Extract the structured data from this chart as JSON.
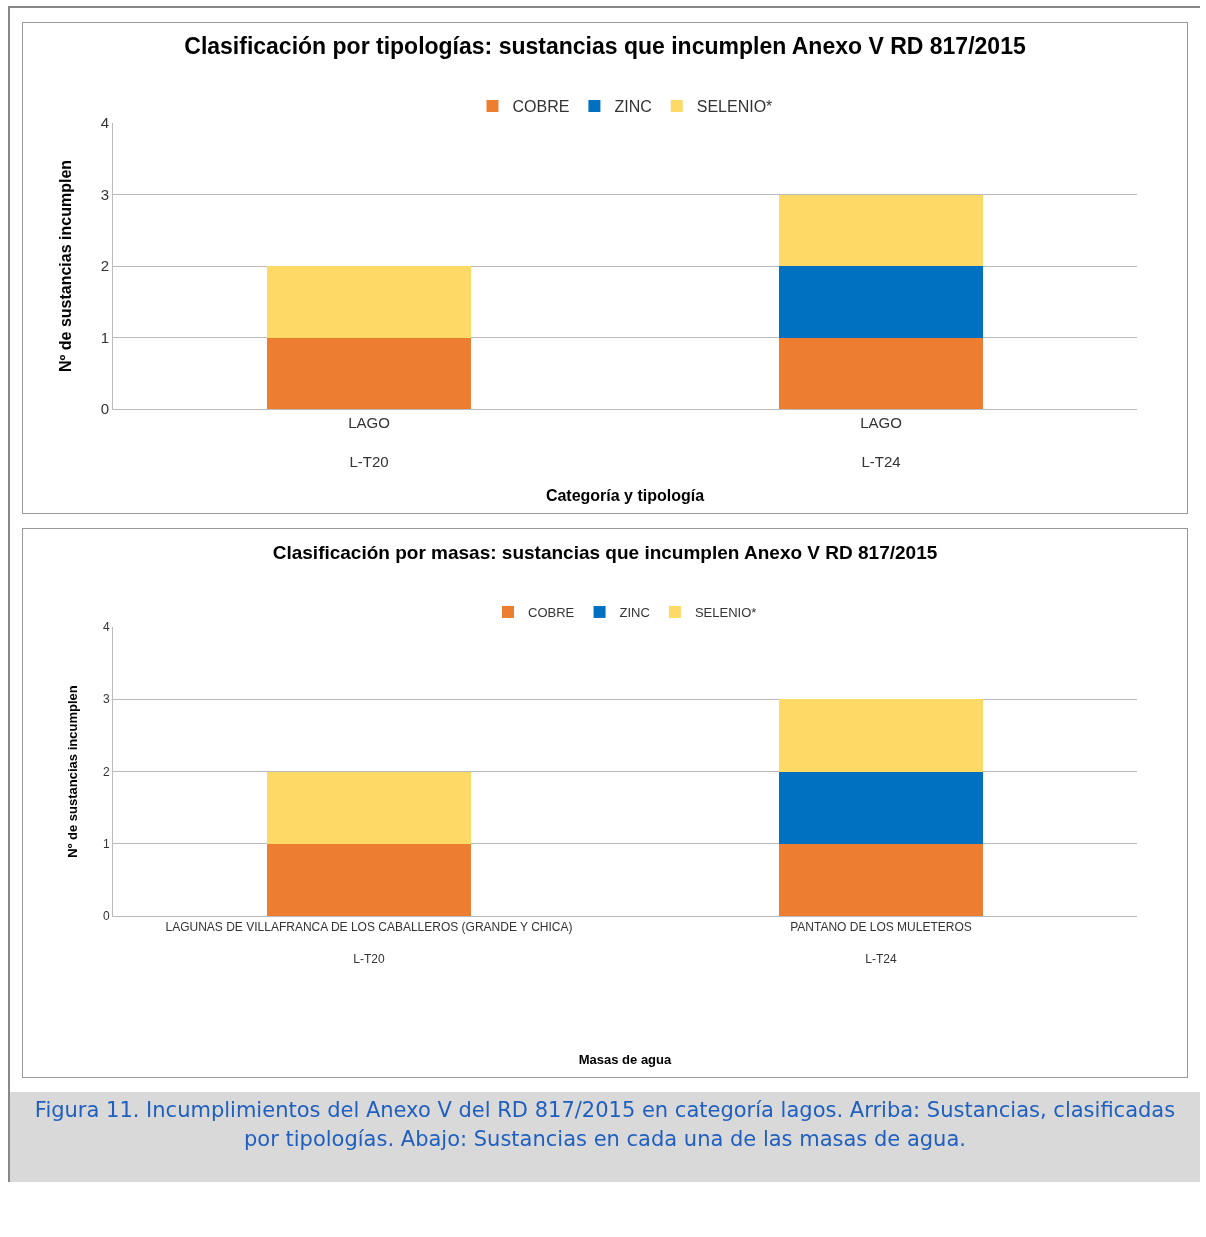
{
  "chart_data": [
    {
      "type": "bar",
      "title": "Clasificación por tipologías: sustancias que incumplen Anexo V RD 817/2015",
      "xlabel": "Categoría y tipología",
      "ylabel": "Nº de sustancias incumplen",
      "categories": [
        "LAGO\nL-T20",
        "LAGO\nL-T24"
      ],
      "stacked": true,
      "ylim": [
        0,
        4
      ],
      "yticks": [
        0,
        1,
        2,
        3,
        4
      ],
      "grid": "y",
      "legend": "top",
      "series": [
        {
          "name": "COBRE",
          "color": "#ed7d31",
          "values": [
            1,
            1
          ]
        },
        {
          "name": "ZINC",
          "color": "#0070c0",
          "values": [
            0,
            1
          ]
        },
        {
          "name": "SELENIO*",
          "color": "#ffd966",
          "values": [
            1,
            1
          ]
        }
      ]
    },
    {
      "type": "bar",
      "title": "Clasificación por masas: sustancias que incumplen Anexo V RD 817/2015",
      "xlabel": "Masas de agua",
      "ylabel": "Nº de sustancias incumplen",
      "categories": [
        "LAGUNAS DE VILLAFRANCA DE LOS CABALLEROS (GRANDE Y CHICA)\nL-T20",
        "PANTANO DE LOS MULETEROS\nL-T24"
      ],
      "stacked": true,
      "ylim": [
        0,
        4
      ],
      "yticks": [
        0,
        1,
        2,
        3,
        4
      ],
      "grid": "y",
      "legend": "top",
      "series": [
        {
          "name": "COBRE",
          "color": "#ed7d31",
          "values": [
            1,
            1
          ]
        },
        {
          "name": "ZINC",
          "color": "#0070c0",
          "values": [
            0,
            1
          ]
        },
        {
          "name": "SELENIO*",
          "color": "#ffd966",
          "values": [
            1,
            1
          ]
        }
      ],
      "annotations": [
        "Figura 11. Incumplimientos del Anexo V del RD 817/2015 en categoría lagos. Arriba: Sustancias, clasificadas por tipologías. Abajo: Sustancias en cada una de las masas de agua."
      ]
    }
  ]
}
